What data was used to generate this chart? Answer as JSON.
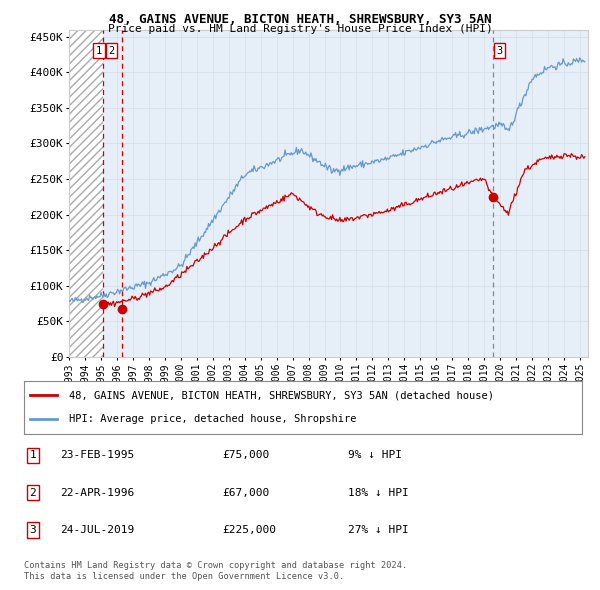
{
  "title1": "48, GAINS AVENUE, BICTON HEATH, SHREWSBURY, SY3 5AN",
  "title2": "Price paid vs. HM Land Registry's House Price Index (HPI)",
  "ylabel_ticks": [
    "£0",
    "£50K",
    "£100K",
    "£150K",
    "£200K",
    "£250K",
    "£300K",
    "£350K",
    "£400K",
    "£450K"
  ],
  "ytick_values": [
    0,
    50000,
    100000,
    150000,
    200000,
    250000,
    300000,
    350000,
    400000,
    450000
  ],
  "ylim": [
    0,
    460000
  ],
  "xlim_start": 1993.0,
  "xlim_end": 2025.5,
  "hpi_color": "#6699cc",
  "price_color": "#cc0000",
  "transaction_color": "#cc0000",
  "legend_label_red": "48, GAINS AVENUE, BICTON HEATH, SHREWSBURY, SY3 5AN (detached house)",
  "legend_label_blue": "HPI: Average price, detached house, Shropshire",
  "transactions": [
    {
      "label": "1",
      "date": 1995.12,
      "price": 75000,
      "text": "23-FEB-1995",
      "amount": "£75,000",
      "hpi_note": "9% ↓ HPI",
      "line_color": "#cc0000",
      "line_style": "--"
    },
    {
      "label": "2",
      "date": 1996.3,
      "price": 67000,
      "text": "22-APR-1996",
      "amount": "£67,000",
      "hpi_note": "18% ↓ HPI",
      "line_color": "#cc0000",
      "line_style": "--"
    },
    {
      "label": "3",
      "date": 2019.55,
      "price": 225000,
      "text": "24-JUL-2019",
      "amount": "£225,000",
      "hpi_note": "27% ↓ HPI",
      "line_color": "#888888",
      "line_style": "--"
    }
  ],
  "footer1": "Contains HM Land Registry data © Crown copyright and database right 2024.",
  "footer2": "This data is licensed under the Open Government Licence v3.0.",
  "grid_color": "#cccccc",
  "background_plot": "#f0f0f0",
  "background_fig": "#ffffff",
  "light_blue_shade": "#ddeeff"
}
